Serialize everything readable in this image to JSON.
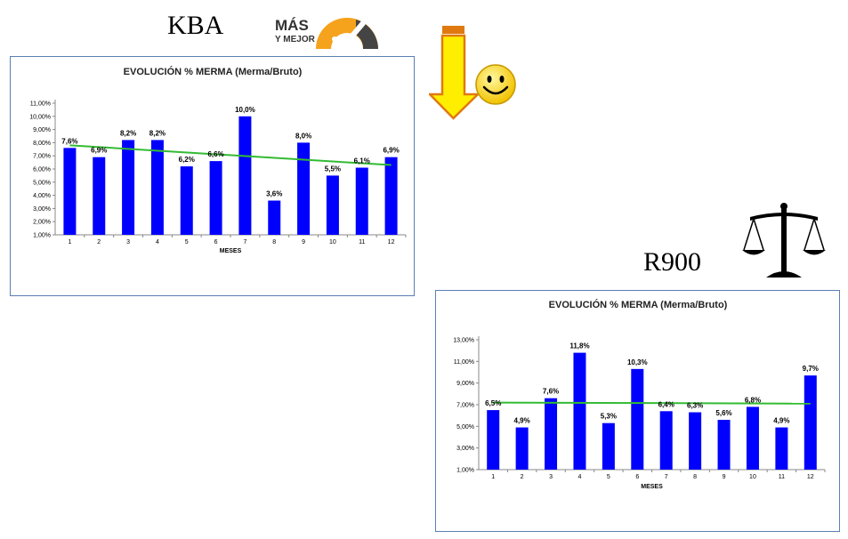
{
  "labels": {
    "kba": "KBA",
    "r900": "R900"
  },
  "badge": {
    "line1": "MÁS",
    "line2": "Y MEJOR"
  },
  "icons": {
    "gauge": "gauge-icon",
    "arrow": "down-arrow-icon",
    "smiley": "smiley-icon",
    "scale": "balance-scale-icon"
  },
  "colors": {
    "bar": "#0000ff",
    "trend": "#33bb33",
    "frame": "#5b7fb4",
    "arrow_fill": "#ffee00",
    "arrow_stroke": "#e07a10",
    "gauge_orange": "#f5a21c"
  },
  "chart_data": [
    {
      "type": "bar",
      "title": "EVOLUCIÓN % MERMA (Merma/Bruto)",
      "xlabel": "MESES",
      "categories": [
        "1",
        "2",
        "3",
        "4",
        "5",
        "6",
        "7",
        "8",
        "9",
        "10",
        "11",
        "12"
      ],
      "values": [
        7.6,
        6.9,
        8.2,
        8.2,
        6.2,
        6.6,
        10.0,
        3.6,
        8.0,
        5.5,
        6.1,
        6.9
      ],
      "data_labels": [
        "7,6%",
        "6,9%",
        "8,2%",
        "8,2%",
        "6,2%",
        "6,6%",
        "10,0%",
        "3,6%",
        "8,0%",
        "5,5%",
        "6,1%",
        "6,9%"
      ],
      "yticks": [
        1,
        2,
        3,
        4,
        5,
        6,
        7,
        8,
        9,
        10,
        11
      ],
      "ytick_labels": [
        "1,00%",
        "2,00%",
        "3,00%",
        "4,00%",
        "5,00%",
        "6,00%",
        "7,00%",
        "8,00%",
        "9,00%",
        "10,00%",
        "11,00%"
      ],
      "ylim": [
        1,
        11
      ],
      "trendline": [
        7.8,
        6.3
      ],
      "legend": "none",
      "grid": false
    },
    {
      "type": "bar",
      "title": "EVOLUCIÓN % MERMA (Merma/Bruto)",
      "xlabel": "MESES",
      "categories": [
        "1",
        "2",
        "3",
        "4",
        "5",
        "6",
        "7",
        "8",
        "9",
        "10",
        "11",
        "12"
      ],
      "values": [
        6.5,
        4.9,
        7.6,
        11.8,
        5.3,
        10.3,
        6.4,
        6.3,
        5.6,
        6.8,
        4.9,
        9.7
      ],
      "data_labels": [
        "6,5%",
        "4,9%",
        "7,6%",
        "11,8%",
        "5,3%",
        "10,3%",
        "6,4%",
        "6,3%",
        "5,6%",
        "6,8%",
        "4,9%",
        "9,7%"
      ],
      "yticks": [
        1,
        3,
        5,
        7,
        9,
        11,
        13
      ],
      "ytick_labels": [
        "1,00%",
        "3,00%",
        "5,00%",
        "7,00%",
        "9,00%",
        "11,00%",
        "13,00%"
      ],
      "ylim": [
        1,
        13
      ],
      "trendline": [
        7.2,
        7.1
      ],
      "legend": "none",
      "grid": false
    }
  ]
}
